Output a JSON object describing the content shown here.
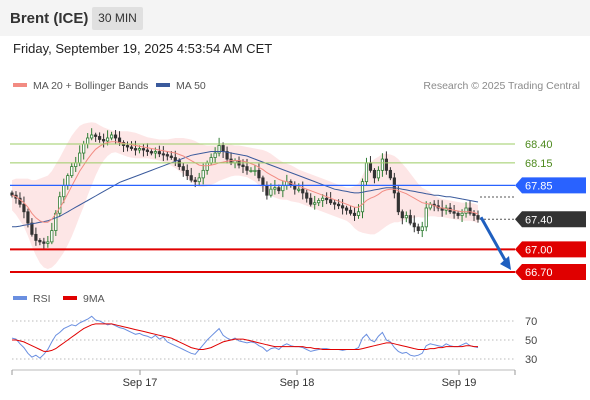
{
  "header": {
    "symbol": "Brent (ICE)",
    "timeframe": "30 MIN",
    "datetime": "Friday, September 19, 2025 4:53:54 AM CET"
  },
  "legend": {
    "ma20": "MA 20 + Bollinger Bands",
    "ma50": "MA 50",
    "credit": "Research © 2025 Trading Central"
  },
  "rsi_legend": {
    "rsi": "RSI",
    "ma9": "9MA"
  },
  "colors": {
    "band_fill": "#fde2e2",
    "ma20": "#f28b82",
    "ma50": "#3a5a9c",
    "candle_up": "#2e7d32",
    "candle_down": "#333333",
    "resistance_line": "#9ccc65",
    "pivot": "#2962ff",
    "support": "#e00000",
    "current_price": "#333333",
    "rsi": "#6a8fe0",
    "rsi_ma": "#e00000",
    "arrow": "#1f5fbf"
  },
  "levels": [
    {
      "label": "68.40",
      "kind": "resistance"
    },
    {
      "label": "68.15",
      "kind": "resistance"
    },
    {
      "label": "67.85",
      "kind": "pivot"
    },
    {
      "label": "67.40",
      "kind": "current"
    },
    {
      "label": "67.00",
      "kind": "support"
    },
    {
      "label": "66.70",
      "kind": "support"
    }
  ],
  "rsi_levels": [
    "70",
    "50",
    "30"
  ],
  "x_axis": [
    "Sep 17",
    "Sep 18",
    "Sep 19"
  ],
  "price_series": [
    67.72,
    67.68,
    67.6,
    67.5,
    67.35,
    67.2,
    67.12,
    67.1,
    67.08,
    67.1,
    67.25,
    67.48,
    67.7,
    67.85,
    67.98,
    68.1,
    68.15,
    68.28,
    68.4,
    68.48,
    68.52,
    68.5,
    68.46,
    68.44,
    68.48,
    68.52,
    68.48,
    68.42,
    68.38,
    68.36,
    68.34,
    68.32,
    68.34,
    68.32,
    68.3,
    68.28,
    68.3,
    68.27,
    68.26,
    68.24,
    68.22,
    68.18,
    68.1,
    68.05,
    67.98,
    67.92,
    67.9,
    67.95,
    68.05,
    68.15,
    68.22,
    68.28,
    68.38,
    68.3,
    68.2,
    68.15,
    68.18,
    68.12,
    68.1,
    68.05,
    68.05,
    68.05,
    67.95,
    67.85,
    67.72,
    67.8,
    67.82,
    67.78,
    67.85,
    67.9,
    67.85,
    67.8,
    67.8,
    67.75,
    67.68,
    67.6,
    67.62,
    67.65,
    67.68,
    67.66,
    67.62,
    67.6,
    67.58,
    67.55,
    67.52,
    67.48,
    67.45,
    67.5,
    67.9,
    68.15,
    68.05,
    67.95,
    68.05,
    68.2,
    68.05,
    67.95,
    67.75,
    67.5,
    67.42,
    67.45,
    67.35,
    67.3,
    67.25,
    67.3,
    67.55,
    67.6,
    67.58,
    67.55,
    67.52,
    67.55,
    67.5,
    67.48,
    67.45,
    67.48,
    67.55,
    67.48,
    67.45,
    67.4
  ],
  "ma20_series": [
    67.72,
    67.7,
    67.66,
    67.62,
    67.56,
    67.48,
    67.42,
    67.38,
    67.36,
    67.36,
    67.4,
    67.47,
    67.55,
    67.64,
    67.74,
    67.84,
    67.94,
    68.04,
    68.12,
    68.2,
    68.27,
    68.33,
    68.37,
    68.4,
    68.42,
    68.43,
    68.43,
    68.42,
    68.41,
    68.4,
    68.39,
    68.38,
    68.37,
    68.36,
    68.35,
    68.34,
    68.33,
    68.32,
    68.31,
    68.3,
    68.29,
    68.28,
    68.26,
    68.24,
    68.21,
    68.18,
    68.15,
    68.12,
    68.11,
    68.11,
    68.12,
    68.13,
    68.15,
    68.16,
    68.17,
    68.18,
    68.18,
    68.18,
    68.17,
    68.16,
    68.14,
    68.12,
    68.09,
    68.06,
    68.02,
    67.99,
    67.96,
    67.93,
    67.91,
    67.9,
    67.88,
    67.86,
    67.84,
    67.82,
    67.8,
    67.78,
    67.76,
    67.74,
    67.72,
    67.7,
    67.68,
    67.66,
    67.64,
    67.62,
    67.6,
    67.58,
    67.56,
    67.56,
    67.6,
    67.65,
    67.68,
    67.7,
    67.73,
    67.77,
    67.79,
    67.8,
    67.8,
    67.78,
    67.76,
    67.74,
    67.71,
    67.68,
    67.65,
    67.62,
    67.61,
    67.6,
    67.58,
    67.56,
    67.55,
    67.54,
    67.53,
    67.52,
    67.51,
    67.5,
    67.5,
    67.5,
    67.49,
    67.47
  ],
  "ma50_series": [
    67.3,
    67.3,
    67.31,
    67.32,
    67.33,
    67.34,
    67.35,
    67.36,
    67.37,
    67.38,
    67.4,
    67.42,
    67.44,
    67.47,
    67.5,
    67.53,
    67.56,
    67.59,
    67.62,
    67.65,
    67.68,
    67.71,
    67.74,
    67.77,
    67.8,
    67.83,
    67.86,
    67.89,
    67.91,
    67.93,
    67.95,
    67.97,
    67.99,
    68.01,
    68.03,
    68.05,
    68.07,
    68.09,
    68.11,
    68.13,
    68.15,
    68.17,
    68.19,
    68.21,
    68.23,
    68.25,
    68.26,
    68.27,
    68.28,
    68.29,
    68.3,
    68.3,
    68.3,
    68.3,
    68.29,
    68.28,
    68.27,
    68.26,
    68.25,
    68.24,
    68.22,
    68.2,
    68.18,
    68.16,
    68.14,
    68.12,
    68.1,
    68.08,
    68.06,
    68.04,
    68.02,
    68.0,
    67.98,
    67.96,
    67.94,
    67.92,
    67.9,
    67.88,
    67.86,
    67.84,
    67.82,
    67.8,
    67.79,
    67.78,
    67.77,
    67.76,
    67.75,
    67.75,
    67.76,
    67.77,
    67.78,
    67.79,
    67.8,
    67.81,
    67.82,
    67.82,
    67.82,
    67.81,
    67.8,
    67.79,
    67.78,
    67.77,
    67.76,
    67.75,
    67.74,
    67.73,
    67.72,
    67.72,
    67.71,
    67.7,
    67.7,
    67.69,
    67.68,
    67.67,
    67.66,
    67.65,
    67.64,
    67.63
  ],
  "bb_width_series": [
    0.2,
    0.24,
    0.28,
    0.32,
    0.38,
    0.44,
    0.5,
    0.56,
    0.6,
    0.62,
    0.64,
    0.66,
    0.67,
    0.68,
    0.68,
    0.67,
    0.64,
    0.6,
    0.55,
    0.48,
    0.42,
    0.35,
    0.28,
    0.22,
    0.18,
    0.15,
    0.14,
    0.15,
    0.16,
    0.17,
    0.17,
    0.17,
    0.16,
    0.15,
    0.14,
    0.14,
    0.14,
    0.14,
    0.15,
    0.16,
    0.18,
    0.2,
    0.22,
    0.24,
    0.26,
    0.28,
    0.29,
    0.29,
    0.28,
    0.27,
    0.26,
    0.25,
    0.24,
    0.23,
    0.22,
    0.21,
    0.2,
    0.2,
    0.2,
    0.2,
    0.21,
    0.22,
    0.24,
    0.26,
    0.28,
    0.28,
    0.27,
    0.26,
    0.25,
    0.24,
    0.24,
    0.23,
    0.22,
    0.22,
    0.22,
    0.22,
    0.22,
    0.22,
    0.22,
    0.22,
    0.22,
    0.22,
    0.22,
    0.22,
    0.22,
    0.24,
    0.28,
    0.32,
    0.38,
    0.44,
    0.48,
    0.5,
    0.5,
    0.5,
    0.48,
    0.46,
    0.44,
    0.42,
    0.38,
    0.34,
    0.3,
    0.26,
    0.22,
    0.2,
    0.18,
    0.16,
    0.14,
    0.13,
    0.12,
    0.12,
    0.12,
    0.12,
    0.12,
    0.12,
    0.12,
    0.12,
    0.12,
    0.12
  ],
  "rsi_series": [
    52,
    51,
    46,
    42,
    36,
    32,
    34,
    31,
    35,
    40,
    48,
    55,
    58,
    62,
    64,
    66,
    65,
    68,
    70,
    72,
    75,
    71,
    70,
    68,
    66,
    67,
    65,
    63,
    62,
    60,
    58,
    56,
    57,
    55,
    54,
    52,
    55,
    51,
    53,
    48,
    46,
    44,
    42,
    40,
    38,
    36,
    35,
    40,
    45,
    50,
    54,
    58,
    62,
    55,
    52,
    50,
    52,
    49,
    48,
    47,
    48,
    47,
    44,
    42,
    38,
    41,
    42,
    40,
    44,
    46,
    44,
    43,
    43,
    42,
    40,
    38,
    39,
    40,
    41,
    41,
    40,
    40,
    40,
    39,
    40,
    40,
    40,
    42,
    52,
    56,
    50,
    48,
    54,
    58,
    50,
    48,
    42,
    38,
    36,
    37,
    34,
    33,
    34,
    36,
    44,
    46,
    45,
    44,
    43,
    46,
    44,
    43,
    43,
    45,
    47,
    44,
    43,
    42
  ],
  "rsi_ma_series": [
    50,
    50,
    49,
    48,
    46,
    44,
    42,
    40,
    38,
    38,
    39,
    41,
    44,
    47,
    50,
    53,
    56,
    59,
    62,
    64,
    66,
    67,
    67,
    67,
    67,
    67,
    66,
    65,
    64,
    63,
    62,
    61,
    60,
    59,
    58,
    57,
    56,
    55,
    54,
    53,
    52,
    50,
    48,
    46,
    44,
    42,
    41,
    40,
    40,
    41,
    42,
    44,
    46,
    48,
    49,
    50,
    51,
    51,
    51,
    50,
    49,
    48,
    47,
    46,
    45,
    44,
    43,
    43,
    43,
    43,
    43,
    43,
    43,
    43,
    42,
    42,
    41,
    41,
    40,
    40,
    40,
    40,
    40,
    40,
    40,
    40,
    40,
    40,
    41,
    42,
    43,
    44,
    45,
    46,
    47,
    47,
    46,
    45,
    44,
    43,
    42,
    41,
    40,
    40,
    40,
    41,
    41,
    42,
    42,
    43,
    43,
    43,
    43,
    43,
    44,
    44,
    43,
    43
  ]
}
